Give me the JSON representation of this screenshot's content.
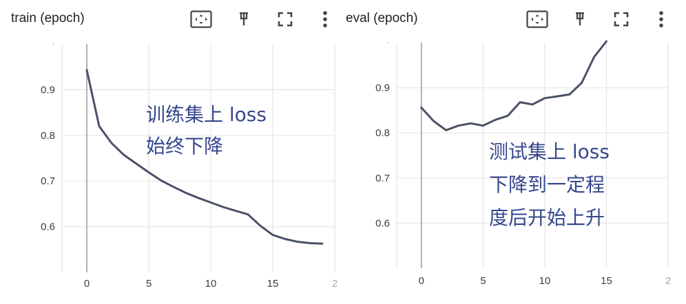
{
  "toolbar": {
    "icons": [
      "fit-domain-icon",
      "pin-icon",
      "fullscreen-icon",
      "more-vert-icon"
    ]
  },
  "colors": {
    "line": "#4a5166",
    "grid": "#e6e6e6",
    "axis": "#b0b0b0",
    "annotation": "#36478f"
  },
  "chart_data": [
    {
      "type": "line",
      "title": "train (epoch)",
      "xlabel": "",
      "ylabel": "",
      "xlim": [
        -2,
        20
      ],
      "ylim": [
        0.5,
        1.0
      ],
      "x_ticks": [
        "0",
        "5",
        "10",
        "15",
        "2"
      ],
      "y_ticks": [
        "0.6",
        "0.7",
        "0.8",
        "0.9"
      ],
      "grid": true,
      "annotation": [
        "训练集上 loss",
        "始终下降"
      ],
      "series": [
        {
          "x": [
            0,
            1,
            2,
            3,
            4,
            5,
            6,
            7,
            8,
            9,
            10,
            11,
            12,
            13,
            14,
            15,
            16,
            17,
            18,
            19
          ],
          "y": [
            0.943,
            0.82,
            0.783,
            0.757,
            0.738,
            0.719,
            0.701,
            0.687,
            0.674,
            0.663,
            0.653,
            0.643,
            0.635,
            0.627,
            0.602,
            0.582,
            0.573,
            0.567,
            0.564,
            0.563
          ]
        }
      ]
    },
    {
      "type": "line",
      "title": "eval (epoch)",
      "xlabel": "",
      "ylabel": "",
      "xlim": [
        -2,
        20
      ],
      "ylim": [
        0.5,
        1.0
      ],
      "x_ticks": [
        "0",
        "5",
        "10",
        "15",
        "2"
      ],
      "y_ticks": [
        "0.6",
        "0.7",
        "0.8",
        "0.9"
      ],
      "grid": true,
      "annotation": [
        "测试集上 loss",
        "下降到一定程",
        "度后开始上升"
      ],
      "series": [
        {
          "x": [
            0,
            1,
            2,
            3,
            4,
            5,
            6,
            7,
            8,
            9,
            10,
            11,
            12,
            13,
            14,
            15
          ],
          "y": [
            0.856,
            0.826,
            0.806,
            0.816,
            0.821,
            0.816,
            0.829,
            0.838,
            0.868,
            0.863,
            0.877,
            0.881,
            0.885,
            0.911,
            0.968,
            1.003
          ]
        }
      ]
    }
  ]
}
